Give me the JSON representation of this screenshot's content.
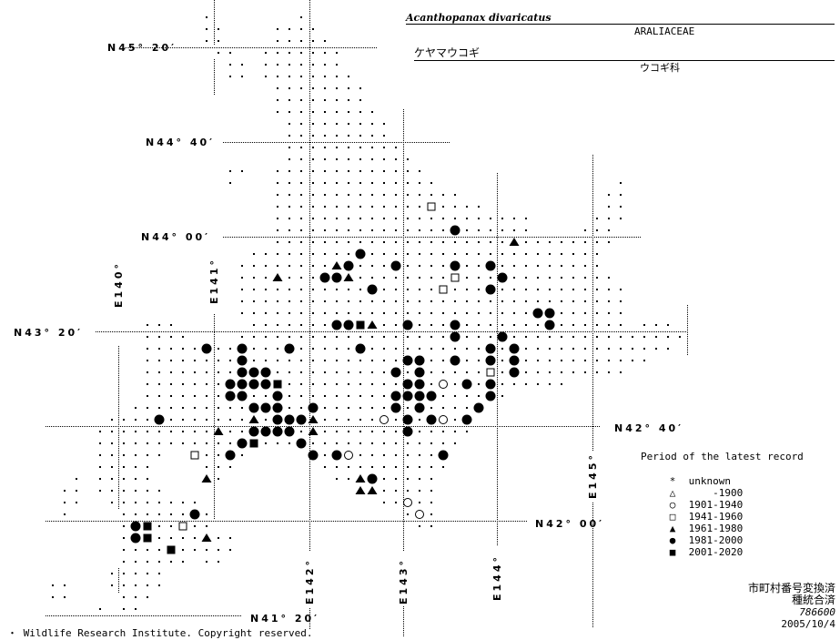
{
  "species": {
    "scientific_name": "Acanthopanax divaricatus",
    "family": "ARALIACEAE",
    "japanese_name": "ケヤマウコギ",
    "family_japanese": "ウコギ科"
  },
  "latitude_labels": [
    "N45° 20′",
    "N44° 40′",
    "N44° 00′",
    "N43° 20′",
    "N42° 40′",
    "N42° 00′",
    "N41° 20′"
  ],
  "longitude_labels": [
    "E140°",
    "E141°",
    "E142°",
    "E143°",
    "E144°",
    "E145°"
  ],
  "legend": {
    "title": "Period of the latest record",
    "items": [
      {
        "symbol": "asterisk",
        "glyph": "*",
        "label": "unknown"
      },
      {
        "symbol": "open-triangle",
        "glyph": "△",
        "label": "    -1900"
      },
      {
        "symbol": "open-circle",
        "glyph": "○",
        "label": "1901-1940"
      },
      {
        "symbol": "open-square",
        "glyph": "□",
        "label": "1941-1960"
      },
      {
        "symbol": "filled-triangle",
        "glyph": "▲",
        "label": "1961-1980"
      },
      {
        "symbol": "filled-circle",
        "glyph": "●",
        "label": "1981-2000"
      },
      {
        "symbol": "filled-square",
        "glyph": "■",
        "label": "2001-2020"
      }
    ]
  },
  "notes": {
    "line1": "市町村番号変換済",
    "line2": "種統合済",
    "code": "786600",
    "date": "2005/10/4"
  },
  "footer": "・ Wildlife Research Institute. Copyright reserved.",
  "records": {
    "1901-1940": [
      [
        143.423,
        42.961
      ],
      [
        142.798,
        42.711
      ],
      [
        143.423,
        42.711
      ],
      [
        142.423,
        42.461
      ],
      [
        143.048,
        42.128
      ],
      [
        143.173,
        42.045
      ]
    ],
    "1941-1960": [
      [
        143.298,
        44.211
      ],
      [
        143.548,
        43.711
      ],
      [
        143.423,
        43.628
      ],
      [
        143.923,
        43.045
      ],
      [
        140.798,
        42.461
      ],
      [
        140.673,
        41.961
      ]
    ],
    "1961-1980": [
      [
        144.173,
        43.961
      ],
      [
        142.298,
        43.795
      ],
      [
        141.673,
        43.711
      ],
      [
        142.423,
        43.711
      ],
      [
        142.673,
        43.378
      ],
      [
        141.423,
        42.711
      ],
      [
        142.048,
        42.711
      ],
      [
        141.048,
        42.628
      ],
      [
        142.048,
        42.628
      ],
      [
        140.923,
        42.295
      ],
      [
        142.548,
        42.295
      ],
      [
        142.548,
        42.211
      ],
      [
        142.673,
        42.211
      ],
      [
        140.923,
        41.878
      ]
    ],
    "1981-2000": [
      [
        143.548,
        44.045
      ],
      [
        142.548,
        43.878
      ],
      [
        142.423,
        43.795
      ],
      [
        142.923,
        43.795
      ],
      [
        143.548,
        43.795
      ],
      [
        143.923,
        43.795
      ],
      [
        142.173,
        43.711
      ],
      [
        142.298,
        43.711
      ],
      [
        144.048,
        43.711
      ],
      [
        142.673,
        43.628
      ],
      [
        143.923,
        43.628
      ],
      [
        144.423,
        43.461
      ],
      [
        144.548,
        43.461
      ],
      [
        142.298,
        43.378
      ],
      [
        142.423,
        43.378
      ],
      [
        143.048,
        43.378
      ],
      [
        143.548,
        43.378
      ],
      [
        144.548,
        43.378
      ],
      [
        143.548,
        43.295
      ],
      [
        144.048,
        43.295
      ],
      [
        140.923,
        43.211
      ],
      [
        141.298,
        43.211
      ],
      [
        141.798,
        43.211
      ],
      [
        142.548,
        43.211
      ],
      [
        143.923,
        43.211
      ],
      [
        144.173,
        43.211
      ],
      [
        141.298,
        43.128
      ],
      [
        143.048,
        43.128
      ],
      [
        143.173,
        43.128
      ],
      [
        143.548,
        43.128
      ],
      [
        143.923,
        43.128
      ],
      [
        144.173,
        43.128
      ],
      [
        141.298,
        43.045
      ],
      [
        141.423,
        43.045
      ],
      [
        141.548,
        43.045
      ],
      [
        142.923,
        43.045
      ],
      [
        143.173,
        43.045
      ],
      [
        144.173,
        43.045
      ],
      [
        141.173,
        42.961
      ],
      [
        141.298,
        42.961
      ],
      [
        141.423,
        42.961
      ],
      [
        141.548,
        42.961
      ],
      [
        143.048,
        42.961
      ],
      [
        143.173,
        42.961
      ],
      [
        143.673,
        42.961
      ],
      [
        143.923,
        42.961
      ],
      [
        141.173,
        42.878
      ],
      [
        141.298,
        42.878
      ],
      [
        141.673,
        42.878
      ],
      [
        142.923,
        42.878
      ],
      [
        143.048,
        42.878
      ],
      [
        143.173,
        42.878
      ],
      [
        143.298,
        42.878
      ],
      [
        143.923,
        42.878
      ],
      [
        141.423,
        42.795
      ],
      [
        141.548,
        42.795
      ],
      [
        141.673,
        42.795
      ],
      [
        142.048,
        42.795
      ],
      [
        142.923,
        42.795
      ],
      [
        143.173,
        42.795
      ],
      [
        143.798,
        42.795
      ],
      [
        140.423,
        42.711
      ],
      [
        141.673,
        42.711
      ],
      [
        141.798,
        42.711
      ],
      [
        141.923,
        42.711
      ],
      [
        143.048,
        42.711
      ],
      [
        143.298,
        42.711
      ],
      [
        143.673,
        42.711
      ],
      [
        141.423,
        42.628
      ],
      [
        141.548,
        42.628
      ],
      [
        141.673,
        42.628
      ],
      [
        141.798,
        42.628
      ],
      [
        143.048,
        42.628
      ],
      [
        141.298,
        42.545
      ],
      [
        141.923,
        42.545
      ],
      [
        141.173,
        42.461
      ],
      [
        142.048,
        42.461
      ],
      [
        142.298,
        42.461
      ],
      [
        143.423,
        42.461
      ],
      [
        142.673,
        42.295
      ],
      [
        140.798,
        42.045
      ],
      [
        140.173,
        41.961
      ],
      [
        140.173,
        41.878
      ]
    ],
    "2001-2020": [
      [
        142.548,
        43.378
      ],
      [
        141.673,
        42.961
      ],
      [
        141.423,
        42.545
      ],
      [
        140.298,
        41.961
      ],
      [
        140.298,
        41.878
      ],
      [
        140.548,
        41.795
      ]
    ]
  },
  "period_symbols": {
    "1901-1940": "open-circle",
    "1941-1960": "open-square",
    "1961-1980": "filled-triangle",
    "1981-2000": "filled-circle",
    "2001-2020": "filled-square"
  }
}
